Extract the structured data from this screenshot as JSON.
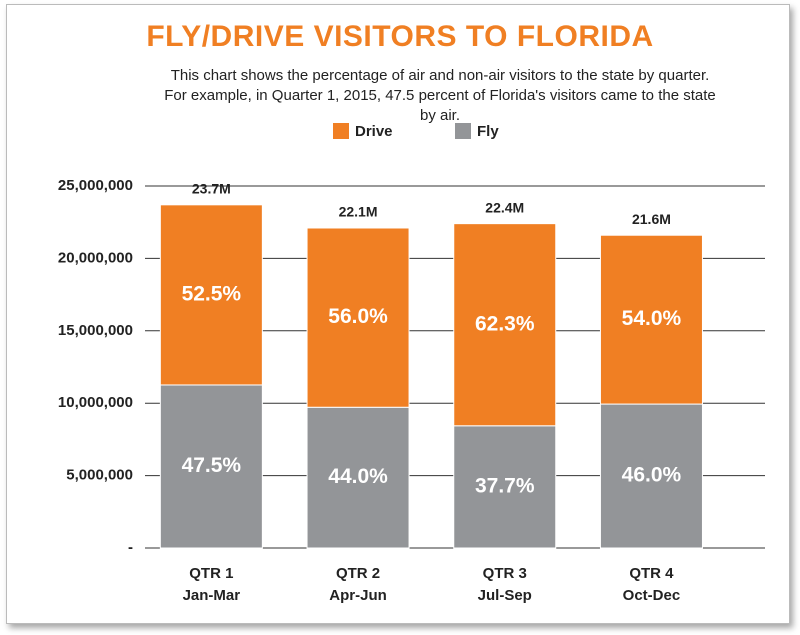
{
  "chart_data": {
    "type": "stacked-bar",
    "title": "FLY/DRIVE VISITORS TO FLORIDA",
    "subtitle": "This chart shows the percentage of air and non-air visitors to the state by quarter. For example, in Quarter 1, 2015, 47.5 percent of Florida's visitors came to the state by air.",
    "categories": [
      "QTR 1",
      "QTR 2",
      "QTR 3",
      "QTR 4"
    ],
    "periods": [
      "Jan-Mar",
      "Apr-Jun",
      "Jul-Sep",
      "Oct-Dec"
    ],
    "series": [
      {
        "name": "Fly",
        "color": "#939598",
        "values": [
          11260000,
          9720000,
          8440000,
          9940000
        ],
        "percent_labels": [
          "47.5%",
          "44.0%",
          "37.7%",
          "46.0%"
        ]
      },
      {
        "name": "Drive",
        "color": "#f07f23",
        "values": [
          12440000,
          12380000,
          13960000,
          11660000
        ],
        "percent_labels": [
          "52.5%",
          "56.0%",
          "62.3%",
          "54.0%"
        ]
      }
    ],
    "totals": [
      {
        "value": 23700000,
        "label": "23.7M"
      },
      {
        "value": 22100000,
        "label": "22.1M"
      },
      {
        "value": 22400000,
        "label": "22.4M"
      },
      {
        "value": 21600000,
        "label": "21.6M"
      }
    ],
    "ylim": [
      0,
      25000000
    ],
    "yticks": [
      {
        "value": 0,
        "label": "-"
      },
      {
        "value": 5000000,
        "label": "5,000,000"
      },
      {
        "value": 10000000,
        "label": "10,000,000"
      },
      {
        "value": 15000000,
        "label": "15,000,000"
      },
      {
        "value": 20000000,
        "label": "20,000,000"
      },
      {
        "value": 25000000,
        "label": "25,000,000"
      }
    ],
    "grid": true
  }
}
